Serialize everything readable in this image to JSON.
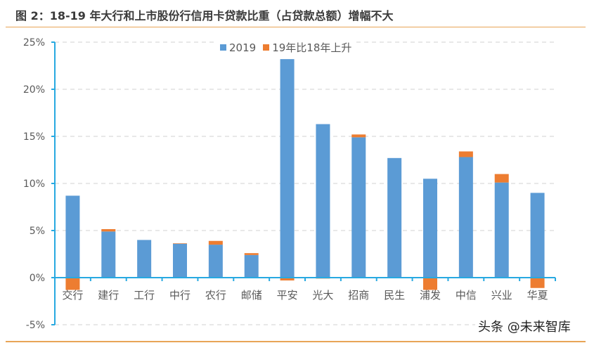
{
  "title": "图 2：18-19 年大行和上市股份行信用卡贷款比重（占贷款总额）增幅不大",
  "watermark": "头条 @未来智库",
  "colors": {
    "series_2019": "#5b9bd5",
    "series_change": "#ed7d31",
    "axis": "#27a9e1",
    "grid": "#d0d0d0",
    "rule": "#e8a456"
  },
  "legend": [
    {
      "label": "2019",
      "color": "#5b9bd5"
    },
    {
      "label": "19年比18年上升",
      "color": "#ed7d31"
    }
  ],
  "chart_data": {
    "type": "bar",
    "stacked": true,
    "title": "图 2：18-19 年大行和上市股份行信用卡贷款比重（占贷款总额）增幅不大",
    "xlabel": "",
    "ylabel": "",
    "ylim": [
      -5,
      25
    ],
    "yticks": [
      "-5%",
      "0%",
      "5%",
      "10%",
      "15%",
      "20%",
      "25%"
    ],
    "grid": "horizontal dashed",
    "legend_position": "top",
    "categories": [
      "交行",
      "建行",
      "工行",
      "中行",
      "农行",
      "邮储",
      "平安",
      "光大",
      "招商",
      "民生",
      "浦发",
      "中信",
      "兴业",
      "华夏"
    ],
    "series": [
      {
        "name": "2019",
        "values": [
          8.7,
          4.9,
          4.0,
          3.6,
          3.5,
          2.4,
          23.2,
          16.3,
          14.9,
          12.7,
          10.5,
          12.8,
          10.1,
          9.0
        ]
      },
      {
        "name": "19年比18年上升",
        "values": [
          -1.3,
          0.25,
          0.0,
          0.05,
          0.4,
          0.2,
          -0.3,
          -0.1,
          0.3,
          0.0,
          -1.3,
          0.6,
          0.9,
          -1.1
        ]
      }
    ]
  }
}
